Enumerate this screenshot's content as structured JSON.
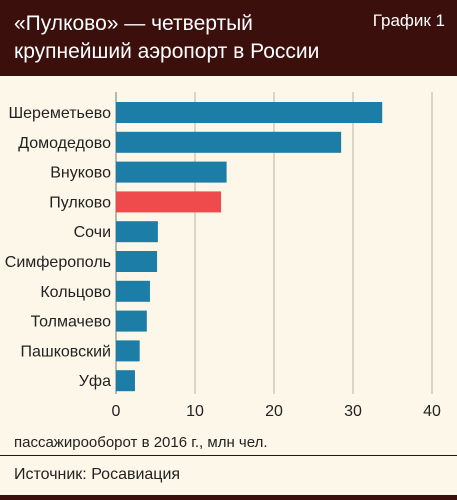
{
  "header": {
    "title": "«Пулково» — четвертый крупнейший аэропорт в России",
    "tag": "График 1"
  },
  "source": "Источник: Росавиация",
  "colors": {
    "header_bg": "#3a0f0c",
    "panel_bg": "#fdf7ea",
    "bar": "#1c7ea6",
    "highlight": "#f04b4c"
  },
  "chart_data": {
    "type": "bar",
    "orientation": "horizontal",
    "categories": [
      "Шереметьево",
      "Домодедово",
      "Внуково",
      "Пулково",
      "Сочи",
      "Симферополь",
      "Кольцово",
      "Толмачево",
      "Пашковский",
      "Уфа"
    ],
    "values": [
      33.7,
      28.5,
      14.0,
      13.3,
      5.3,
      5.2,
      4.3,
      3.9,
      3.0,
      2.4
    ],
    "highlight_category": "Пулково",
    "xlabel": "пассажирооборот в 2016 г., млн чел.",
    "xlim": [
      0,
      40
    ],
    "xticks": [
      0,
      10,
      20,
      30,
      40
    ],
    "grid": true
  }
}
